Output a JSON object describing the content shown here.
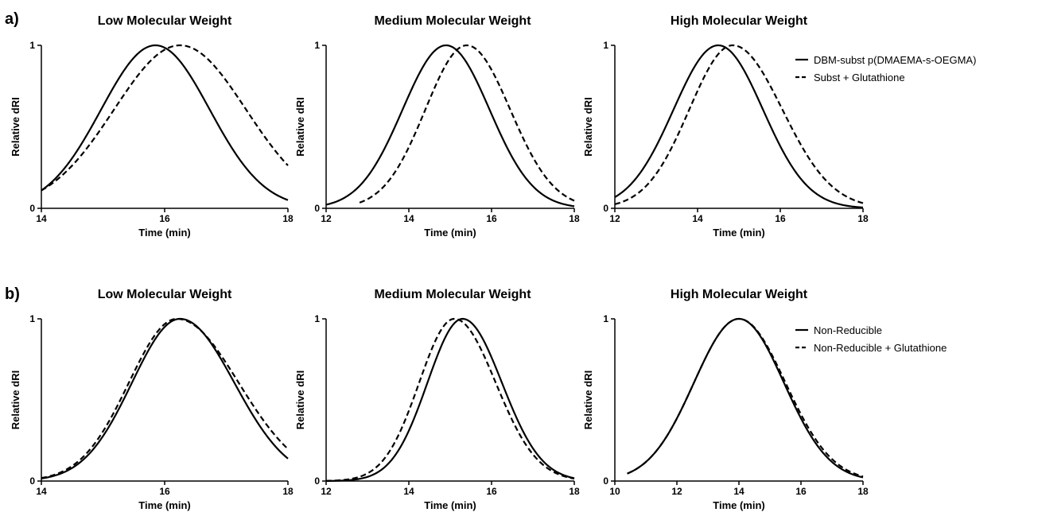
{
  "figure": {
    "row_labels": [
      "a)",
      "b)"
    ]
  },
  "chart_data": [
    {
      "type": "line",
      "title": "Low Molecular Weight",
      "xlabel": "Time (min)",
      "ylabel": "Relative dRI",
      "xlim": [
        14,
        18
      ],
      "ylim": [
        0,
        1
      ],
      "xticks": [
        14,
        16,
        18
      ],
      "yticks": [
        0,
        1
      ],
      "series": [
        {
          "name": "DBM-subst p(DMAEMA-s-OEGMA)",
          "style": "solid",
          "mu": 15.85,
          "sigmaL": 0.88,
          "sigmaR": 0.88
        },
        {
          "name": "Subst + Glutathione",
          "style": "dashed",
          "mu": 16.25,
          "sigmaL": 1.07,
          "sigmaR": 1.07
        }
      ]
    },
    {
      "type": "line",
      "title": "Medium Molecular Weight",
      "xlabel": "Time (min)",
      "ylabel": "Relative dRI",
      "xlim": [
        12,
        18
      ],
      "ylim": [
        0,
        1
      ],
      "xticks": [
        12,
        14,
        16,
        18
      ],
      "yticks": [
        0,
        1
      ],
      "series": [
        {
          "name": "DBM-subst p(DMAEMA-s-OEGMA)",
          "style": "solid",
          "mu": 14.9,
          "sigmaL": 1.05,
          "sigmaR": 1.05
        },
        {
          "name": "Subst + Glutathione",
          "style": "dashed",
          "mu": 15.4,
          "sigmaL": 1.0,
          "sigmaR": 1.05,
          "xstart": 12.8
        }
      ]
    },
    {
      "type": "line",
      "title": "High Molecular Weight",
      "xlabel": "Time (min)",
      "ylabel": "Relative dRI",
      "xlim": [
        12,
        18
      ],
      "ylim": [
        0,
        1
      ],
      "xticks": [
        12,
        14,
        16,
        18
      ],
      "yticks": [
        0,
        1
      ],
      "legend": {
        "placement": "top-right-outside",
        "entries": [
          "DBM-subst p(DMAEMA-s-OEGMA)",
          "Subst + Glutathione"
        ]
      },
      "series": [
        {
          "name": "DBM-subst p(DMAEMA-s-OEGMA)",
          "style": "solid",
          "mu": 14.5,
          "sigmaL": 1.08,
          "sigmaR": 1.08
        },
        {
          "name": "Subst + Glutathione",
          "style": "dashed",
          "mu": 14.85,
          "sigmaL": 1.05,
          "sigmaR": 1.2
        }
      ]
    },
    {
      "type": "line",
      "title": "Low Molecular Weight",
      "xlabel": "Time (min)",
      "ylabel": "Relative dRI",
      "xlim": [
        14,
        18
      ],
      "ylim": [
        0,
        1
      ],
      "xticks": [
        14,
        16,
        18
      ],
      "yticks": [
        0,
        1
      ],
      "series": [
        {
          "name": "Non-Reducible",
          "style": "solid",
          "mu": 16.25,
          "sigmaL": 0.78,
          "sigmaR": 0.88
        },
        {
          "name": "Non-Reducible + Glutathione",
          "style": "dashed",
          "mu": 16.2,
          "sigmaL": 0.78,
          "sigmaR": 1.0
        }
      ]
    },
    {
      "type": "line",
      "title": "Medium Molecular Weight",
      "xlabel": "Time (min)",
      "ylabel": "Relative dRI",
      "xlim": [
        12,
        18
      ],
      "ylim": [
        0,
        1
      ],
      "xticks": [
        12,
        14,
        16,
        18
      ],
      "yticks": [
        0,
        1
      ],
      "series": [
        {
          "name": "Non-Reducible",
          "style": "solid",
          "mu": 15.3,
          "sigmaL": 0.85,
          "sigmaR": 0.95
        },
        {
          "name": "Non-Reducible + Glutathione",
          "style": "dashed",
          "mu": 15.1,
          "sigmaL": 0.85,
          "sigmaR": 1.0
        }
      ]
    },
    {
      "type": "line",
      "title": "High Molecular Weight",
      "xlabel": "Time (min)",
      "ylabel": "Relative dRI",
      "xlim": [
        10,
        18
      ],
      "ylim": [
        0,
        1
      ],
      "xticks": [
        10,
        12,
        14,
        16,
        18
      ],
      "yticks": [
        0,
        1
      ],
      "legend": {
        "placement": "top-right-outside",
        "entries": [
          "Non-Reducible",
          "Non-Reducible + Glutathione"
        ]
      },
      "series": [
        {
          "name": "Non-Reducible",
          "style": "solid",
          "mu": 14.0,
          "sigmaL": 1.45,
          "sigmaR": 1.45,
          "xstart": 10.4
        },
        {
          "name": "Non-Reducible + Glutathione",
          "style": "dashed",
          "mu": 14.0,
          "sigmaL": 1.45,
          "sigmaR": 1.5,
          "xstart": 10.4
        }
      ]
    }
  ]
}
